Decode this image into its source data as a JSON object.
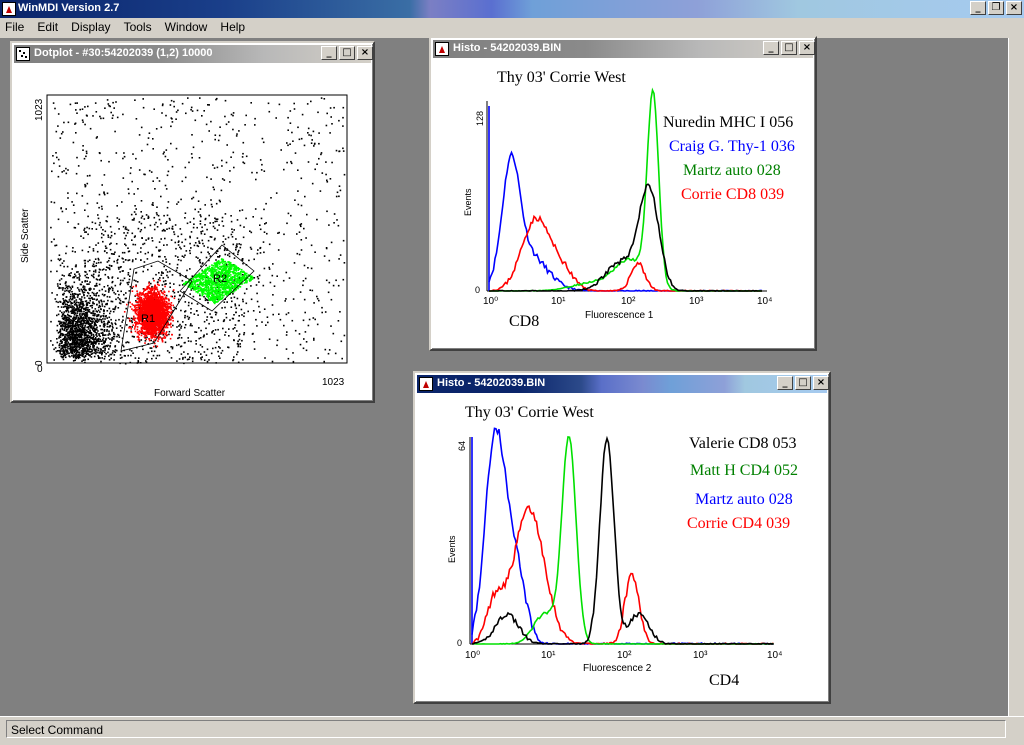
{
  "app": {
    "title": "WinMDI Version 2.7"
  },
  "menu": [
    "File",
    "Edit",
    "Display",
    "Tools",
    "Window",
    "Help"
  ],
  "window_buttons": {
    "minimize": "_",
    "restore": "❐",
    "close": "×"
  },
  "status": {
    "text": "Select Command"
  },
  "dotplot": {
    "title": "Dotplot - #30:54202039 (1,2) 10000",
    "xlabel": "Forward Scatter",
    "ylabel": "Side Scatter",
    "x_max_label": "1023",
    "y_max_label": "1023",
    "origin_label": "0",
    "regions": [
      "R1",
      "R2"
    ],
    "region_colors": {
      "R1": "#ff0000",
      "R2": "#00ff00"
    }
  },
  "histo1": {
    "title": "Histo - 54202039.BIN",
    "heading": "Thy 03' Corrie West",
    "ymax": "128",
    "ylabel": "Events",
    "xlabel": "Fluorescence 1",
    "marker": "CD8",
    "x_ticks": [
      "10⁰",
      "10¹",
      "10²",
      "10³",
      "10⁴"
    ],
    "y_zero": "0",
    "legend": [
      {
        "label": "Nuredin MHC I 056",
        "color": "#000000"
      },
      {
        "label": "Craig G. Thy-1 036",
        "color": "#0000ff"
      },
      {
        "label": "Martz auto 028",
        "color": "#008000"
      },
      {
        "label": "Corrie CD8 039",
        "color": "#ff0000"
      }
    ]
  },
  "histo2": {
    "title": "Histo - 54202039.BIN",
    "heading": "Thy 03' Corrie West",
    "ymax": "64",
    "ylabel": "Events",
    "xlabel": "Fluorescence 2",
    "marker": "CD4",
    "x_ticks": [
      "10⁰",
      "10¹",
      "10²",
      "10³",
      "10⁴"
    ],
    "y_zero": "0",
    "legend": [
      {
        "label": "Valerie CD8 053",
        "color": "#000000"
      },
      {
        "label": "Matt H CD4 052",
        "color": "#008000"
      },
      {
        "label": "Martz auto 028",
        "color": "#0000ff"
      },
      {
        "label": "Corrie CD4 039",
        "color": "#ff0000"
      }
    ]
  }
}
